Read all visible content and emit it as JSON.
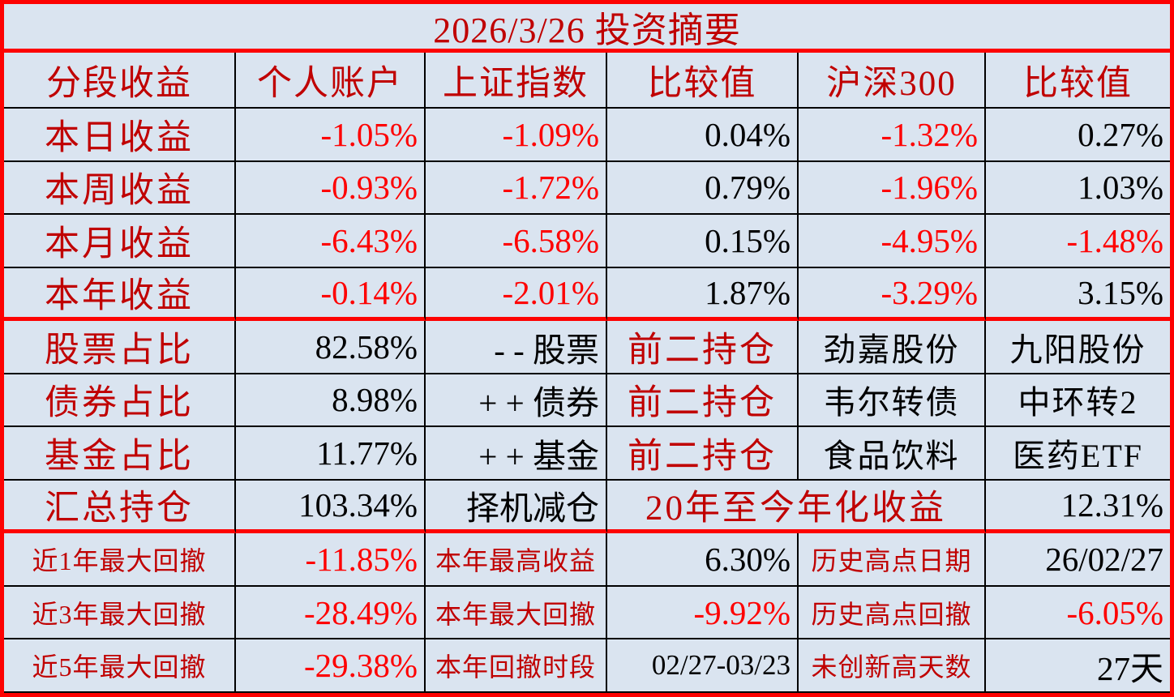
{
  "title": "2026/3/26 投资摘要",
  "header": [
    "分段收益",
    "个人账户",
    "上证指数",
    "比较值",
    "沪深300",
    "比较值"
  ],
  "returns": [
    {
      "label": "本日收益",
      "account": "-1.05%",
      "sse": "-1.09%",
      "cmp1": "0.04%",
      "csi300": "-1.32%",
      "cmp2": "0.27%"
    },
    {
      "label": "本周收益",
      "account": "-0.93%",
      "sse": "-1.72%",
      "cmp1": "0.79%",
      "csi300": "-1.96%",
      "cmp2": "1.03%"
    },
    {
      "label": "本月收益",
      "account": "-6.43%",
      "sse": "-6.58%",
      "cmp1": "0.15%",
      "csi300": "-4.95%",
      "cmp2": "-1.48%"
    },
    {
      "label": "本年收益",
      "account": "-0.14%",
      "sse": "-2.01%",
      "cmp1": "1.87%",
      "csi300": "-3.29%",
      "cmp2": "3.15%"
    }
  ],
  "allocation": [
    {
      "label": "股票占比",
      "value": "82.58%",
      "trend": "- - 股票",
      "tag": "前二持仓",
      "holding1": "劲嘉股份",
      "holding2": "九阳股份"
    },
    {
      "label": "债券占比",
      "value": "8.98%",
      "trend": "+ + 债券",
      "tag": "前二持仓",
      "holding1": "韦尔转债",
      "holding2": "中环转2"
    },
    {
      "label": "基金占比",
      "value": "11.77%",
      "trend": "+ + 基金",
      "tag": "前二持仓",
      "holding1": "食品饮料",
      "holding2": "医药ETF"
    }
  ],
  "summary": {
    "label": "汇总持仓",
    "value": "103.34%",
    "action": "择机减仓",
    "annualized_label": "20年至今年化收益",
    "annualized_value": "12.31%"
  },
  "drawdown": [
    {
      "label": "近1年最大回撤",
      "value": "-11.85%",
      "label2": "本年最高收益",
      "value2": "6.30%",
      "label3": "历史高点日期",
      "value3": "26/02/27"
    },
    {
      "label": "近3年最大回撤",
      "value": "-28.49%",
      "label2": "本年最大回撤",
      "value2": "-9.92%",
      "label3": "历史高点回撤",
      "value3": "-6.05%"
    },
    {
      "label": "近5年最大回撤",
      "value": "-29.38%",
      "label2": "本年回撤时段",
      "value2": "02/27-03/23",
      "label3": "未创新高天数",
      "value3": "27天"
    }
  ],
  "colors": {
    "background": "#dae4f0",
    "section_border_red": "#fd0202",
    "label_red": "#c00000",
    "negative_red": "#fe0000",
    "text_black": "#000000"
  }
}
